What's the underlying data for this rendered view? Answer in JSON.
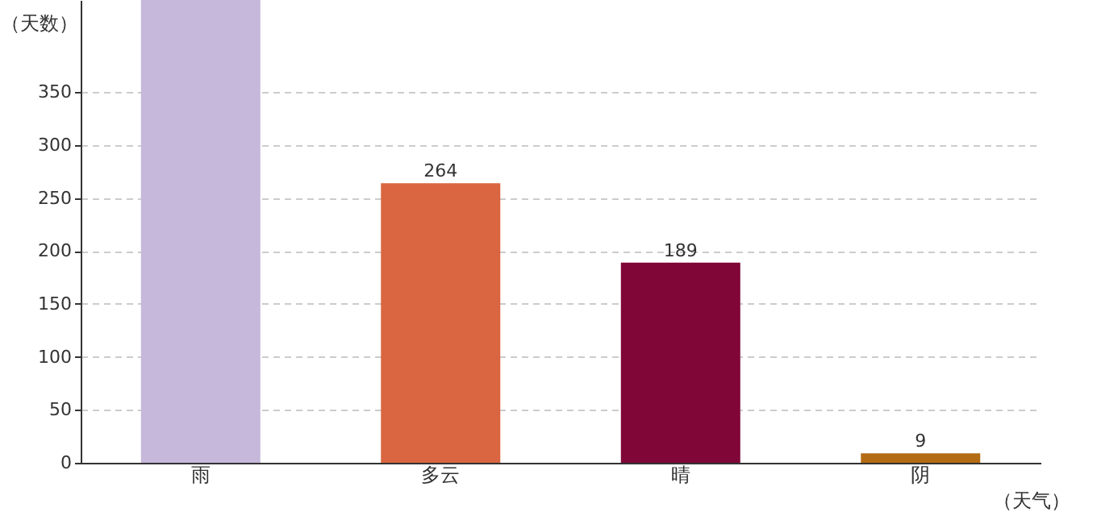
{
  "chart_data": {
    "type": "bar",
    "xlabel": "（天气）",
    "ylabel": "（天数）",
    "categories": [
      "雨",
      "多云",
      "晴",
      "阴"
    ],
    "values": [
      437,
      264,
      189,
      9
    ],
    "colors": [
      "#c5b8da",
      "#d96640",
      "#7f0637",
      "#b46c14"
    ],
    "value_labels": [
      null,
      "264",
      "189",
      "9"
    ],
    "ylim": [
      0,
      437
    ],
    "yticks": [
      0,
      50,
      100,
      150,
      200,
      250,
      300,
      350
    ],
    "grid": "y"
  }
}
